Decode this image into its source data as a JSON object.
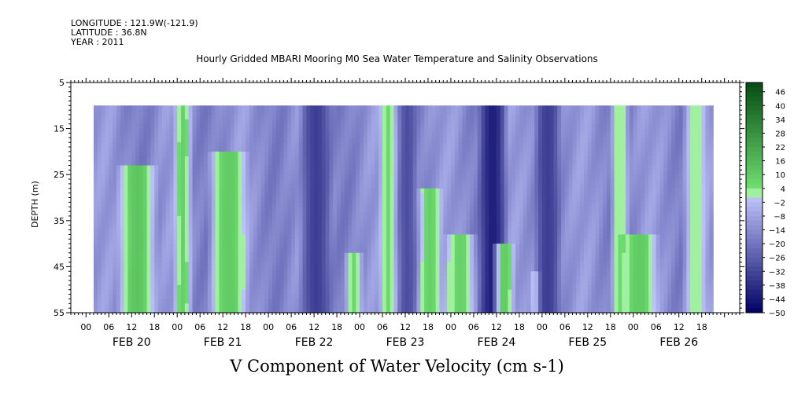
{
  "header": {
    "longitude": "LONGITUDE : 121.9W(-121.9)",
    "latitude": "LATITUDE : 36.8N",
    "year": "YEAR : 2011"
  },
  "chart_data": {
    "type": "heatmap",
    "title": "Hourly Gridded MBARI Mooring M0 Sea Water Temperature and Salinity Observations",
    "xlabel": "V Component of Water Velocity (cm s-1)",
    "ylabel": "DEPTH (m)",
    "y_ticks": [
      "5",
      "15",
      "25",
      "35",
      "45",
      "55"
    ],
    "ylim": [
      55,
      5
    ],
    "x_hour_ticks": [
      "00",
      "06",
      "12",
      "18",
      "00",
      "06",
      "12",
      "18",
      "00",
      "06",
      "12",
      "18",
      "00",
      "06",
      "12",
      "18",
      "00",
      "06",
      "12",
      "18",
      "00",
      "06",
      "12",
      "18",
      "00",
      "06",
      "12",
      "18"
    ],
    "x_day_labels": [
      "FEB 20",
      "FEB 21",
      "FEB 22",
      "FEB 23",
      "FEB 24",
      "FEB 25",
      "FEB 26"
    ],
    "colorbar_labels": [
      "46",
      "40",
      "34",
      "28",
      "22",
      "16",
      "10",
      "4",
      "-2",
      "-8",
      "-14",
      "-20",
      "-26",
      "-32",
      "-38",
      "-44",
      "-50"
    ],
    "colorbar_range": [
      -50,
      50
    ],
    "data_depth_range": [
      10,
      55
    ],
    "features": [
      {
        "start_hour": 8,
        "end_hour": 18,
        "top_depth": 23,
        "value": 12
      },
      {
        "start_hour": 23,
        "end_hour": 27,
        "top_depth": 10,
        "value": 8
      },
      {
        "start_hour": 32,
        "end_hour": 42,
        "top_depth": 20,
        "value": 10
      },
      {
        "start_hour": 56,
        "end_hour": 64,
        "top_depth": 10,
        "value": -34
      },
      {
        "start_hour": 68,
        "end_hour": 72,
        "top_depth": 42,
        "value": 6
      },
      {
        "start_hour": 77,
        "end_hour": 81,
        "top_depth": 10,
        "value": 6
      },
      {
        "start_hour": 82,
        "end_hour": 86,
        "top_depth": 10,
        "value": -30
      },
      {
        "start_hour": 87,
        "end_hour": 93,
        "top_depth": 28,
        "value": 8
      },
      {
        "start_hour": 94,
        "end_hour": 102,
        "top_depth": 38,
        "value": 8
      },
      {
        "start_hour": 103,
        "end_hour": 110,
        "top_depth": 10,
        "value": -42
      },
      {
        "start_hour": 107,
        "end_hour": 112,
        "top_depth": 40,
        "value": 10
      },
      {
        "start_hour": 117,
        "end_hour": 119,
        "top_depth": 46,
        "value": 6
      },
      {
        "start_hour": 118,
        "end_hour": 124,
        "top_depth": 10,
        "value": -34
      },
      {
        "start_hour": 138,
        "end_hour": 142,
        "top_depth": 10,
        "value": 4
      },
      {
        "start_hour": 140,
        "end_hour": 150,
        "top_depth": 38,
        "value": 10
      },
      {
        "start_hour": 157,
        "end_hour": 163,
        "top_depth": 10,
        "value": 4
      }
    ]
  }
}
